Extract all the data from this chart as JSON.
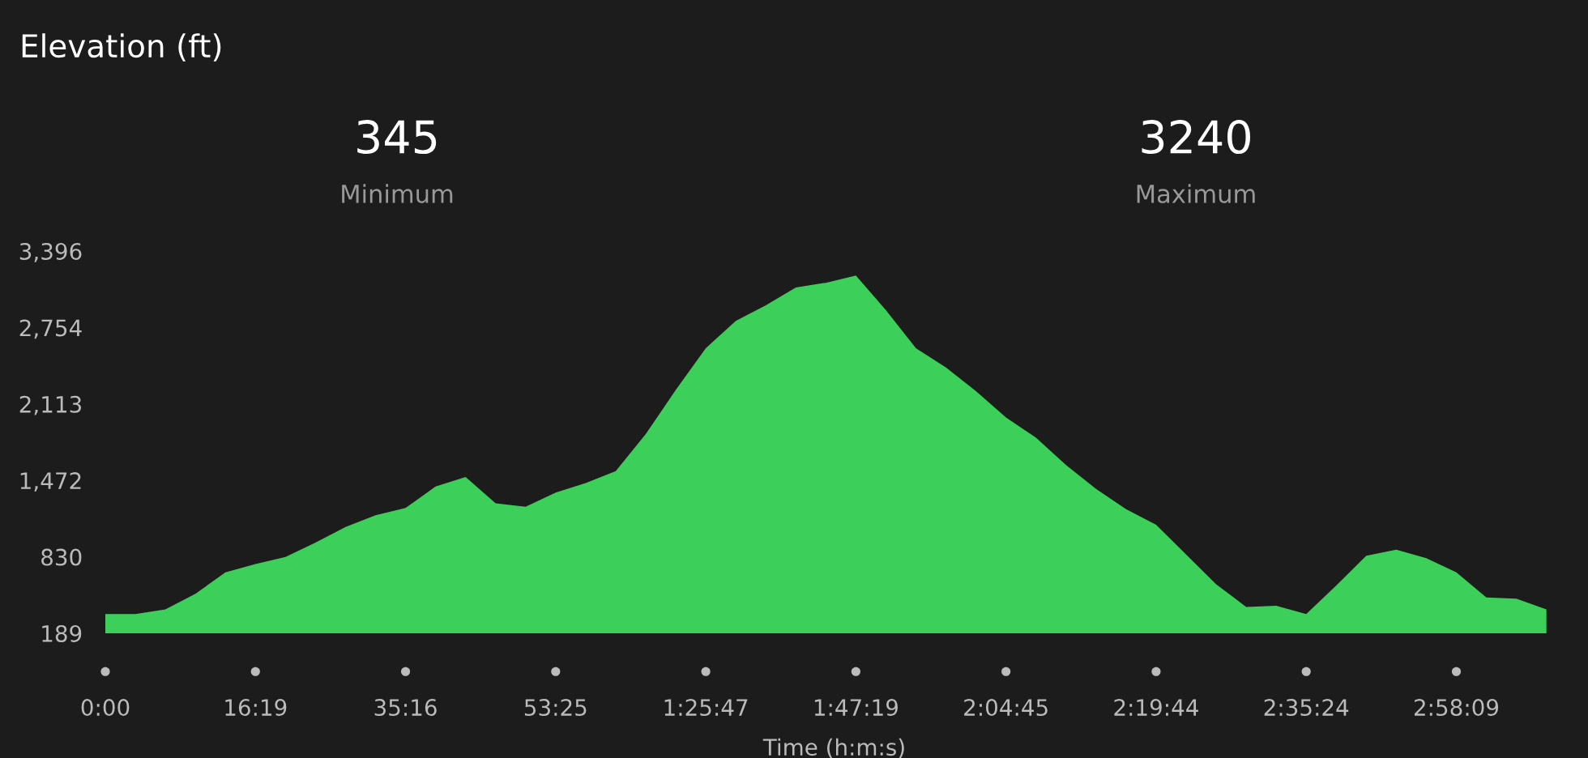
{
  "chart_data": {
    "type": "area",
    "title": "Elevation (ft)",
    "xlabel": "Time (h:m:s)",
    "annotations": [
      "345",
      "Minimum",
      "3240",
      "Maximum"
    ],
    "categories": [
      "0:00",
      null,
      null,
      null,
      null,
      "16:19",
      null,
      null,
      null,
      null,
      "35:16",
      null,
      null,
      null,
      null,
      "53:25",
      null,
      null,
      null,
      null,
      "1:25:47",
      null,
      null,
      null,
      null,
      "1:47:19",
      null,
      null,
      null,
      null,
      "2:04:45",
      null,
      null,
      null,
      null,
      "2:19:44",
      null,
      null,
      null,
      null,
      "2:35:24",
      null,
      null,
      null,
      null,
      "2:58:09",
      null,
      null,
      null
    ],
    "series": [
      {
        "color": "#3ccf5a",
        "values": [
          350,
          350,
          390,
          520,
          700,
          770,
          830,
          950,
          1080,
          1180,
          1240,
          1420,
          1500,
          1280,
          1250,
          1370,
          1450,
          1550,
          1860,
          2230,
          2580,
          2810,
          2940,
          3090,
          3130,
          3190,
          2900,
          2580,
          2420,
          2220,
          2000,
          1830,
          1600,
          1400,
          1230,
          1100,
          850,
          600,
          410,
          420,
          350,
          590,
          840,
          890,
          820,
          700,
          490,
          480,
          390
        ]
      }
    ],
    "ylim": [
      189,
      3396
    ],
    "yticks": [
      {
        "value": 189,
        "label": "189"
      },
      {
        "value": 830,
        "label": "830"
      },
      {
        "value": 1472,
        "label": "1,472"
      },
      {
        "value": 2113,
        "label": "2,113"
      },
      {
        "value": 2754,
        "label": "2,754"
      },
      {
        "value": 3396,
        "label": "3,396"
      }
    ],
    "grid": false,
    "legend": false
  }
}
